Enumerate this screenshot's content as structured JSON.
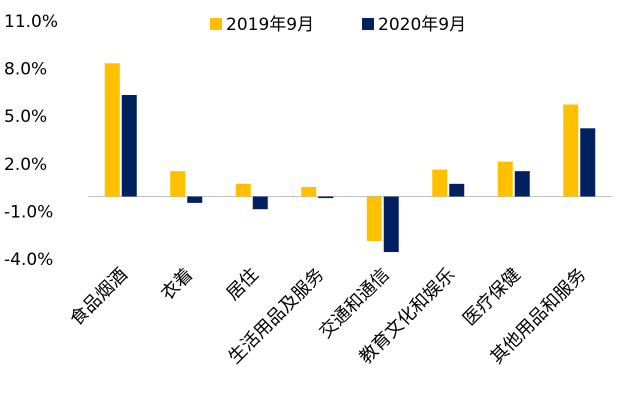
{
  "chart_data": {
    "type": "bar",
    "categories": [
      "食品烟酒",
      "衣着",
      "居住",
      "生活用品及服务",
      "交通和通信",
      "教育文化和娱乐",
      "医疗保健",
      "其他用品和服务"
    ],
    "series": [
      {
        "name": "2019年9月",
        "color": "#ffc000",
        "values": [
          8.4,
          1.6,
          0.8,
          0.6,
          -2.8,
          1.7,
          2.2,
          5.8
        ]
      },
      {
        "name": "2020年9月",
        "color": "#002060",
        "values": [
          6.4,
          -0.4,
          -0.8,
          -0.1,
          -3.5,
          0.8,
          1.6,
          4.3
        ]
      }
    ],
    "ylim": [
      -4,
      11
    ],
    "yticks": [
      {
        "value": -4,
        "label": "-4.0%"
      },
      {
        "value": -1,
        "label": "-1.0%"
      },
      {
        "value": 2,
        "label": "2.0%"
      },
      {
        "value": 5,
        "label": "5.0%"
      },
      {
        "value": 8,
        "label": "8.0%"
      },
      {
        "value": 11,
        "label": "11.0%"
      }
    ],
    "grid": false,
    "legend": "top"
  }
}
